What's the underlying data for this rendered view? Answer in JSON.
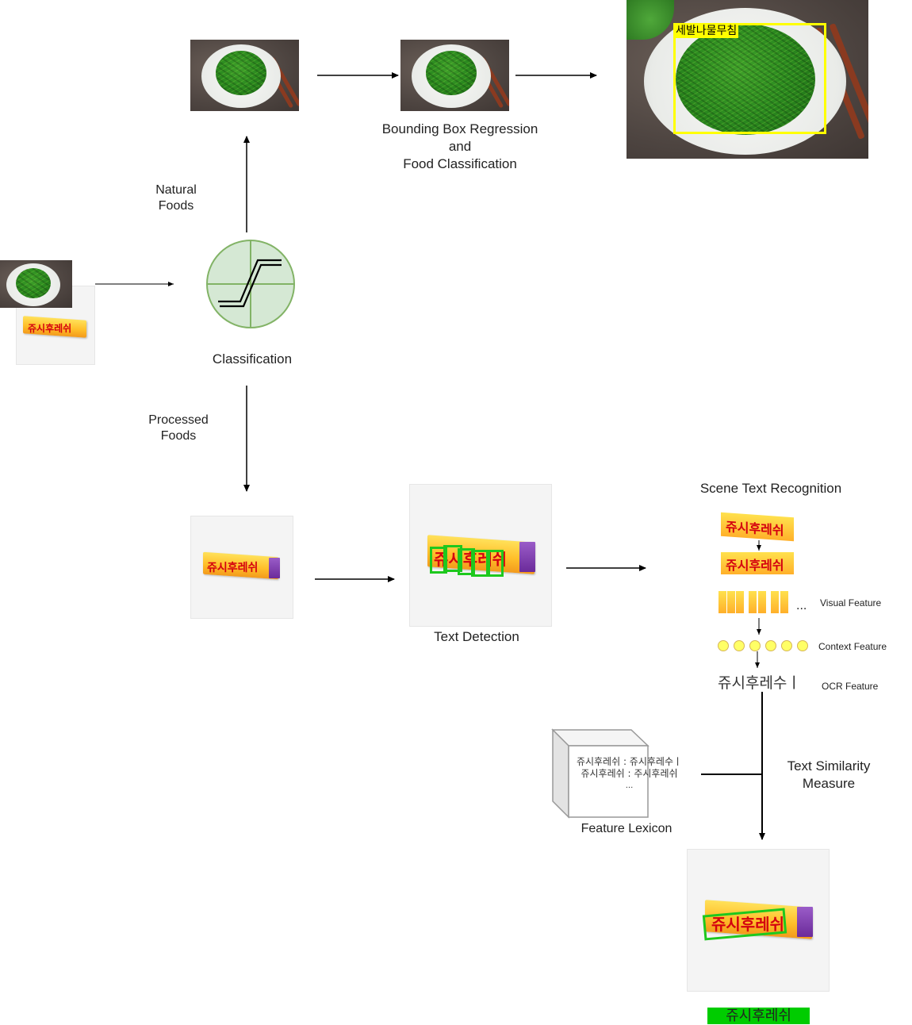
{
  "labels": {
    "bbox_regression": [
      "Bounding Box Regression",
      "and",
      "Food Classification"
    ],
    "natural_foods": [
      "Natural",
      "Foods"
    ],
    "processed_foods": [
      "Processed",
      "Foods"
    ],
    "classification": "Classification",
    "text_detection": "Text Detection",
    "scene_text_recognition": "Scene Text Recognition",
    "visual_feature": "Visual Feature",
    "context_feature": "Context Feature",
    "ocr_feature": "OCR Feature",
    "text_similarity_measure": [
      "Text Similarity",
      "Measure"
    ],
    "feature_lexicon": "Feature Lexicon"
  },
  "food_label": "세발나물무침",
  "product_text": "쥬시후레쉬",
  "ocr_output": "쥬시후레수ㅣ",
  "lexicon_lines": [
    "쥬시후레쉬 : 쥬시후레수ㅣ",
    "쥬시후레쉬 : 주시후레쉬",
    "..."
  ],
  "ellipsis": "...",
  "result_label": "쥬시후레쉬",
  "colors": {
    "classifier_fill": "#d5e8d4",
    "classifier_stroke": "#82b366",
    "detect_box": "#1ec81e",
    "bbox": "#ffff00",
    "context_dot": "#ffff66",
    "result_bg": "#00cc00"
  }
}
